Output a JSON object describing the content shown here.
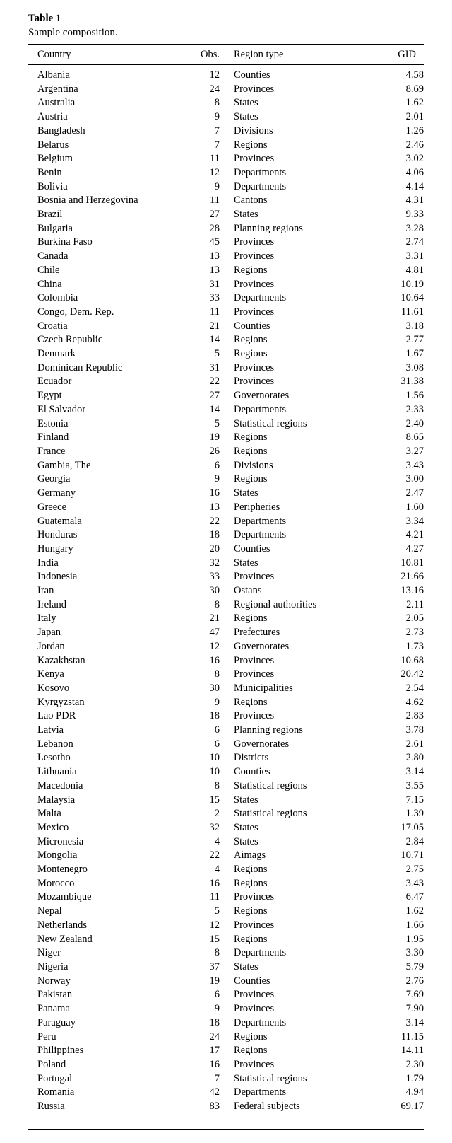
{
  "caption": {
    "label": "Table 1",
    "description": "Sample composition."
  },
  "headers": {
    "country": "Country",
    "obs": "Obs.",
    "region_type": "Region type",
    "gid": "GID"
  },
  "rows": [
    [
      "Albania",
      "12",
      "Counties",
      "4.58"
    ],
    [
      "Argentina",
      "24",
      "Provinces",
      "8.69"
    ],
    [
      "Australia",
      "8",
      "States",
      "1.62"
    ],
    [
      "Austria",
      "9",
      "States",
      "2.01"
    ],
    [
      "Bangladesh",
      "7",
      "Divisions",
      "1.26"
    ],
    [
      "Belarus",
      "7",
      "Regions",
      "2.46"
    ],
    [
      "Belgium",
      "11",
      "Provinces",
      "3.02"
    ],
    [
      "Benin",
      "12",
      "Departments",
      "4.06"
    ],
    [
      "Bolivia",
      "9",
      "Departments",
      "4.14"
    ],
    [
      "Bosnia and Herzegovina",
      "11",
      "Cantons",
      "4.31"
    ],
    [
      "Brazil",
      "27",
      "States",
      "9.33"
    ],
    [
      "Bulgaria",
      "28",
      "Planning regions",
      "3.28"
    ],
    [
      "Burkina Faso",
      "45",
      "Provinces",
      "2.74"
    ],
    [
      "Canada",
      "13",
      "Provinces",
      "3.31"
    ],
    [
      "Chile",
      "13",
      "Regions",
      "4.81"
    ],
    [
      "China",
      "31",
      "Provinces",
      "10.19"
    ],
    [
      "Colombia",
      "33",
      "Departments",
      "10.64"
    ],
    [
      "Congo, Dem. Rep.",
      "11",
      "Provinces",
      "11.61"
    ],
    [
      "Croatia",
      "21",
      "Counties",
      "3.18"
    ],
    [
      "Czech Republic",
      "14",
      "Regions",
      "2.77"
    ],
    [
      "Denmark",
      "5",
      "Regions",
      "1.67"
    ],
    [
      "Dominican Republic",
      "31",
      "Provinces",
      "3.08"
    ],
    [
      "Ecuador",
      "22",
      "Provinces",
      "31.38"
    ],
    [
      "Egypt",
      "27",
      "Governorates",
      "1.56"
    ],
    [
      "El Salvador",
      "14",
      "Departments",
      "2.33"
    ],
    [
      "Estonia",
      "5",
      "Statistical regions",
      "2.40"
    ],
    [
      "Finland",
      "19",
      "Regions",
      "8.65"
    ],
    [
      "France",
      "26",
      "Regions",
      "3.27"
    ],
    [
      "Gambia, The",
      "6",
      "Divisions",
      "3.43"
    ],
    [
      "Georgia",
      "9",
      "Regions",
      "3.00"
    ],
    [
      "Germany",
      "16",
      "States",
      "2.47"
    ],
    [
      "Greece",
      "13",
      "Peripheries",
      "1.60"
    ],
    [
      "Guatemala",
      "22",
      "Departments",
      "3.34"
    ],
    [
      "Honduras",
      "18",
      "Departments",
      "4.21"
    ],
    [
      "Hungary",
      "20",
      "Counties",
      "4.27"
    ],
    [
      "India",
      "32",
      "States",
      "10.81"
    ],
    [
      "Indonesia",
      "33",
      "Provinces",
      "21.66"
    ],
    [
      "Iran",
      "30",
      "Ostans",
      "13.16"
    ],
    [
      "Ireland",
      "8",
      "Regional authorities",
      "2.11"
    ],
    [
      "Italy",
      "21",
      "Regions",
      "2.05"
    ],
    [
      "Japan",
      "47",
      "Prefectures",
      "2.73"
    ],
    [
      "Jordan",
      "12",
      "Governorates",
      "1.73"
    ],
    [
      "Kazakhstan",
      "16",
      "Provinces",
      "10.68"
    ],
    [
      "Kenya",
      "8",
      "Provinces",
      "20.42"
    ],
    [
      "Kosovo",
      "30",
      "Municipalities",
      "2.54"
    ],
    [
      "Kyrgyzstan",
      "9",
      "Regions",
      "4.62"
    ],
    [
      "Lao PDR",
      "18",
      "Provinces",
      "2.83"
    ],
    [
      "Latvia",
      "6",
      "Planning regions",
      "3.78"
    ],
    [
      "Lebanon",
      "6",
      "Governorates",
      "2.61"
    ],
    [
      "Lesotho",
      "10",
      "Districts",
      "2.80"
    ],
    [
      "Lithuania",
      "10",
      "Counties",
      "3.14"
    ],
    [
      "Macedonia",
      "8",
      "Statistical regions",
      "3.55"
    ],
    [
      "Malaysia",
      "15",
      "States",
      "7.15"
    ],
    [
      "Malta",
      "2",
      "Statistical regions",
      "1.39"
    ],
    [
      "Mexico",
      "32",
      "States",
      "17.05"
    ],
    [
      "Micronesia",
      "4",
      "States",
      "2.84"
    ],
    [
      "Mongolia",
      "22",
      "Aimags",
      "10.71"
    ],
    [
      "Montenegro",
      "4",
      "Regions",
      "2.75"
    ],
    [
      "Morocco",
      "16",
      "Regions",
      "3.43"
    ],
    [
      "Mozambique",
      "11",
      "Provinces",
      "6.47"
    ],
    [
      "Nepal",
      "5",
      "Regions",
      "1.62"
    ],
    [
      "Netherlands",
      "12",
      "Provinces",
      "1.66"
    ],
    [
      "New Zealand",
      "15",
      "Regions",
      "1.95"
    ],
    [
      "Niger",
      "8",
      "Departments",
      "3.30"
    ],
    [
      "Nigeria",
      "37",
      "States",
      "5.79"
    ],
    [
      "Norway",
      "19",
      "Counties",
      "2.76"
    ],
    [
      "Pakistan",
      "6",
      "Provinces",
      "7.69"
    ],
    [
      "Panama",
      "9",
      "Provinces",
      "7.90"
    ],
    [
      "Paraguay",
      "18",
      "Departments",
      "3.14"
    ],
    [
      "Peru",
      "24",
      "Regions",
      "11.15"
    ],
    [
      "Philippines",
      "17",
      "Regions",
      "14.11"
    ],
    [
      "Poland",
      "16",
      "Provinces",
      "2.30"
    ],
    [
      "Portugal",
      "7",
      "Statistical regions",
      "1.79"
    ],
    [
      "Romania",
      "42",
      "Departments",
      "4.94"
    ],
    [
      "Russia",
      "83",
      "Federal subjects",
      "69.17"
    ]
  ]
}
